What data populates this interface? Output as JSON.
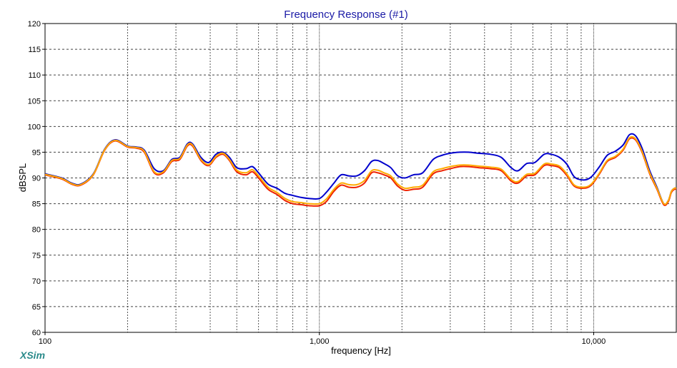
{
  "chart_data": {
    "type": "line",
    "title": "Frequency Response (#1)",
    "xlabel": "frequency [Hz]",
    "ylabel": "dBSPL",
    "xscale": "log",
    "xlim": [
      100,
      20000
    ],
    "ylim": [
      60,
      120
    ],
    "x_tick_labels": [
      {
        "value": 100,
        "label": "100"
      },
      {
        "value": 1000,
        "label": "1,000"
      },
      {
        "value": 10000,
        "label": "10,000"
      }
    ],
    "y_ticks": [
      60,
      65,
      70,
      75,
      80,
      85,
      90,
      95,
      100,
      105,
      110,
      115,
      120
    ],
    "grid": true,
    "legend": "none",
    "x": [
      100,
      115,
      125,
      135,
      150,
      165,
      180,
      200,
      215,
      230,
      250,
      270,
      290,
      310,
      330,
      345,
      370,
      395,
      420,
      445,
      470,
      500,
      540,
      570,
      600,
      650,
      700,
      750,
      800,
      860,
      920,
      1000,
      1060,
      1130,
      1200,
      1280,
      1370,
      1460,
      1550,
      1630,
      1720,
      1820,
      1930,
      2050,
      2200,
      2380,
      2600,
      2800,
      3000,
      3250,
      3500,
      3800,
      4200,
      4600,
      5000,
      5300,
      5700,
      6100,
      6600,
      7000,
      7500,
      8000,
      8500,
      9200,
      9800,
      10500,
      11200,
      12000,
      12800,
      13500,
      14200,
      15000,
      16000,
      17000,
      18000,
      18700,
      19200,
      19700,
      20000
    ],
    "series": [
      {
        "color": "#0000cc",
        "values": [
          90.8,
          90.0,
          89.0,
          88.8,
          90.8,
          95.6,
          97.4,
          96.2,
          96.0,
          95.4,
          91.8,
          91.4,
          93.6,
          94.0,
          96.6,
          96.6,
          94.0,
          93.0,
          94.6,
          95.0,
          94.0,
          92.0,
          91.8,
          92.2,
          91.0,
          88.8,
          88.0,
          87.0,
          86.6,
          86.2,
          86.0,
          86.0,
          87.2,
          89.0,
          90.6,
          90.4,
          90.4,
          91.4,
          93.2,
          93.4,
          92.8,
          92.0,
          90.4,
          90.0,
          90.6,
          91.0,
          93.6,
          94.4,
          94.8,
          95.0,
          95.0,
          94.8,
          94.6,
          94.0,
          92.0,
          91.4,
          92.8,
          93.0,
          94.6,
          94.6,
          94.0,
          92.6,
          90.2,
          89.6,
          90.2,
          92.2,
          94.4,
          95.2,
          96.4,
          98.4,
          98.2,
          95.8,
          91.4,
          88.2,
          85.0,
          85.6,
          87.4,
          88.0,
          88.0
        ]
      },
      {
        "color": "#ee2200",
        "values": [
          90.6,
          89.8,
          88.8,
          88.6,
          90.6,
          95.4,
          97.2,
          96.0,
          95.8,
          95.0,
          91.0,
          91.0,
          93.2,
          93.6,
          96.2,
          96.2,
          93.4,
          92.4,
          94.0,
          94.6,
          93.4,
          91.2,
          90.6,
          91.2,
          90.0,
          87.8,
          86.8,
          85.6,
          85.0,
          84.8,
          84.6,
          84.6,
          85.4,
          87.4,
          88.6,
          88.2,
          88.2,
          89.0,
          91.0,
          91.0,
          90.6,
          90.0,
          88.4,
          87.6,
          87.8,
          88.2,
          90.8,
          91.4,
          91.8,
          92.2,
          92.2,
          92.0,
          91.8,
          91.4,
          89.4,
          89.0,
          90.4,
          90.6,
          92.4,
          92.4,
          92.0,
          90.4,
          88.4,
          88.0,
          88.6,
          90.8,
          93.2,
          94.0,
          95.4,
          97.6,
          97.4,
          95.0,
          90.8,
          87.8,
          84.8,
          85.4,
          87.2,
          87.8,
          87.8
        ]
      },
      {
        "color": "#ffaa00",
        "values": [
          90.7,
          89.9,
          88.9,
          88.7,
          90.7,
          95.5,
          97.3,
          96.1,
          95.9,
          95.2,
          91.2,
          91.2,
          93.4,
          93.8,
          96.4,
          96.4,
          93.6,
          92.6,
          94.2,
          94.8,
          93.6,
          91.5,
          91.0,
          91.6,
          90.4,
          88.2,
          87.2,
          86.0,
          85.4,
          85.2,
          85.0,
          85.0,
          85.9,
          87.8,
          89.0,
          88.7,
          88.7,
          89.5,
          91.4,
          91.5,
          91.0,
          90.4,
          88.8,
          88.0,
          88.2,
          88.6,
          91.2,
          91.8,
          92.2,
          92.5,
          92.5,
          92.3,
          92.1,
          91.7,
          89.7,
          89.3,
          90.7,
          90.9,
          92.7,
          92.7,
          92.3,
          90.7,
          88.6,
          88.2,
          88.8,
          91.0,
          93.4,
          94.2,
          95.6,
          97.8,
          97.6,
          95.2,
          91.0,
          88.0,
          85.0,
          85.6,
          87.4,
          88.0,
          88.0
        ]
      }
    ]
  },
  "branding": {
    "logo_text": "XSim"
  }
}
